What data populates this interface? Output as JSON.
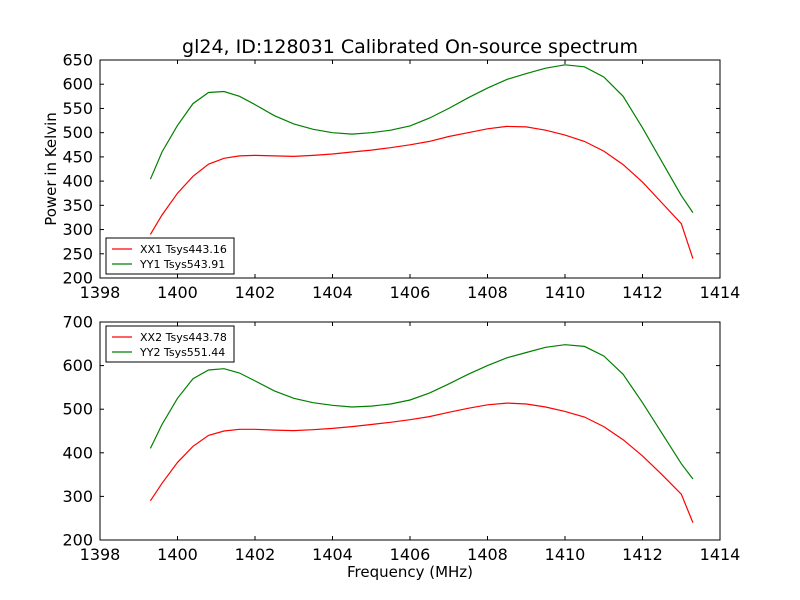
{
  "page_title": "gl24, ID:128031 Calibrated On-source spectrum",
  "chart_data": [
    {
      "type": "line",
      "title": "gl24, ID:128031 Calibrated On-source spectrum",
      "xlabel": "",
      "ylabel": "Power in Kelvin",
      "xlim": [
        1398,
        1414
      ],
      "ylim": [
        200,
        650
      ],
      "xticks": [
        1398,
        1400,
        1402,
        1404,
        1406,
        1408,
        1410,
        1412,
        1414
      ],
      "yticks": [
        200,
        250,
        300,
        350,
        400,
        450,
        500,
        550,
        600,
        650
      ],
      "legend_position": "lower-left",
      "grid": false,
      "series": [
        {
          "name": "XX1 Tsys443.16",
          "color": "#ff0000",
          "x": [
            1399.3,
            1399.6,
            1400.0,
            1400.4,
            1400.8,
            1401.2,
            1401.6,
            1402.0,
            1402.5,
            1403.0,
            1403.5,
            1404.0,
            1404.5,
            1405.0,
            1405.5,
            1406.0,
            1406.5,
            1407.0,
            1407.5,
            1408.0,
            1408.5,
            1409.0,
            1409.5,
            1410.0,
            1410.5,
            1411.0,
            1411.5,
            1412.0,
            1412.5,
            1413.0,
            1413.3
          ],
          "y": [
            290,
            330,
            375,
            410,
            435,
            447,
            452,
            453,
            452,
            451,
            453,
            456,
            460,
            464,
            469,
            475,
            482,
            492,
            500,
            508,
            513,
            512,
            505,
            495,
            482,
            462,
            434,
            398,
            355,
            312,
            240
          ]
        },
        {
          "name": "YY1 Tsys543.91",
          "color": "#008000",
          "x": [
            1399.3,
            1399.6,
            1400.0,
            1400.4,
            1400.8,
            1401.2,
            1401.6,
            1402.0,
            1402.5,
            1403.0,
            1403.5,
            1404.0,
            1404.5,
            1405.0,
            1405.5,
            1406.0,
            1406.5,
            1407.0,
            1407.5,
            1408.0,
            1408.5,
            1409.0,
            1409.5,
            1410.0,
            1410.5,
            1411.0,
            1411.5,
            1412.0,
            1412.5,
            1413.0,
            1413.3
          ],
          "y": [
            404,
            460,
            515,
            560,
            583,
            585,
            575,
            558,
            535,
            518,
            507,
            500,
            497,
            500,
            505,
            514,
            530,
            550,
            572,
            592,
            610,
            622,
            633,
            640,
            636,
            615,
            575,
            510,
            440,
            370,
            335
          ]
        }
      ]
    },
    {
      "type": "line",
      "title": "",
      "xlabel": "Frequency (MHz)",
      "ylabel": "",
      "xlim": [
        1398,
        1414
      ],
      "ylim": [
        200,
        700
      ],
      "xticks": [
        1398,
        1400,
        1402,
        1404,
        1406,
        1408,
        1410,
        1412,
        1414
      ],
      "yticks": [
        200,
        300,
        400,
        500,
        600,
        700
      ],
      "legend_position": "upper-left",
      "grid": false,
      "series": [
        {
          "name": "XX2 Tsys443.78",
          "color": "#ff0000",
          "x": [
            1399.3,
            1399.6,
            1400.0,
            1400.4,
            1400.8,
            1401.2,
            1401.6,
            1402.0,
            1402.5,
            1403.0,
            1403.5,
            1404.0,
            1404.5,
            1405.0,
            1405.5,
            1406.0,
            1406.5,
            1407.0,
            1407.5,
            1408.0,
            1408.5,
            1409.0,
            1409.5,
            1410.0,
            1410.5,
            1411.0,
            1411.5,
            1412.0,
            1412.5,
            1413.0,
            1413.3
          ],
          "y": [
            290,
            330,
            378,
            415,
            440,
            450,
            454,
            454,
            452,
            451,
            453,
            456,
            460,
            465,
            470,
            476,
            483,
            493,
            502,
            510,
            514,
            512,
            505,
            495,
            482,
            460,
            430,
            393,
            350,
            305,
            240
          ]
        },
        {
          "name": "YY2 Tsys551.44",
          "color": "#008000",
          "x": [
            1399.3,
            1399.6,
            1400.0,
            1400.4,
            1400.8,
            1401.2,
            1401.6,
            1402.0,
            1402.5,
            1403.0,
            1403.5,
            1404.0,
            1404.5,
            1405.0,
            1405.5,
            1406.0,
            1406.5,
            1407.0,
            1407.5,
            1408.0,
            1408.5,
            1409.0,
            1409.5,
            1410.0,
            1410.5,
            1411.0,
            1411.5,
            1412.0,
            1412.5,
            1413.0,
            1413.3
          ],
          "y": [
            410,
            465,
            525,
            570,
            590,
            593,
            583,
            565,
            542,
            525,
            515,
            509,
            505,
            507,
            512,
            521,
            537,
            558,
            580,
            600,
            618,
            630,
            642,
            648,
            644,
            622,
            580,
            515,
            445,
            375,
            340
          ]
        }
      ]
    }
  ]
}
